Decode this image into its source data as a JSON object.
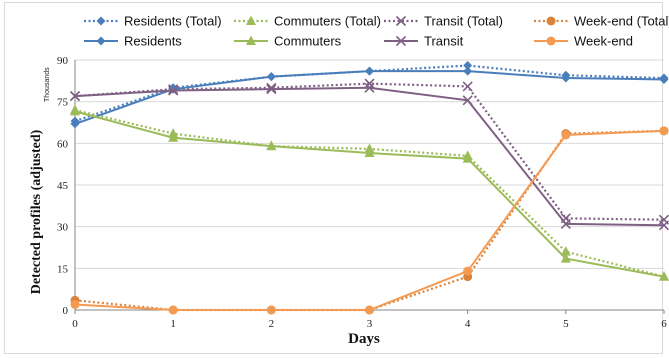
{
  "chart_data": {
    "type": "line",
    "xlabel": "Days",
    "ylabel": "Detected profiles (adjusted)",
    "unit_label": "Thousands",
    "x": [
      0,
      1,
      2,
      3,
      4,
      5,
      6
    ],
    "xlim": [
      0,
      6
    ],
    "ylim": [
      0,
      90
    ],
    "yticks": [
      0,
      15,
      30,
      45,
      60,
      75,
      90
    ],
    "grid": "horizontal",
    "legend_position": "top",
    "series": [
      {
        "name": "Residents (Total)",
        "style": "dotted",
        "marker": "diamond",
        "color": "#4a7ebb",
        "values": [
          68,
          80,
          84,
          86,
          88,
          84.5,
          83.5
        ]
      },
      {
        "name": "Commuters (Total)",
        "style": "dotted",
        "marker": "triangle",
        "color": "#9bbb59",
        "values": [
          72,
          63.5,
          59,
          58,
          55.5,
          21,
          12
        ]
      },
      {
        "name": "Transit (Total)",
        "style": "dotted",
        "marker": "x",
        "color": "#7f6084",
        "values": [
          77,
          79.5,
          80,
          81.5,
          80.5,
          33,
          32.5
        ]
      },
      {
        "name": "Week-end (Total)",
        "style": "dotted",
        "marker": "circle",
        "color": "#d9843a",
        "values": [
          3.5,
          0,
          0,
          0,
          12,
          63.5,
          64.5
        ]
      },
      {
        "name": "Residents",
        "style": "solid",
        "marker": "diamond",
        "color": "#4a7ebb",
        "values": [
          67,
          79.5,
          84,
          86,
          86,
          83.5,
          83
        ]
      },
      {
        "name": "Commuters",
        "style": "solid",
        "marker": "triangle",
        "color": "#9bbb59",
        "values": [
          71.5,
          62,
          59,
          56.5,
          54.5,
          18.5,
          12
        ]
      },
      {
        "name": "Transit",
        "style": "solid",
        "marker": "x",
        "color": "#7f6084",
        "values": [
          77,
          79,
          79.5,
          80,
          75.5,
          31,
          30.5
        ]
      },
      {
        "name": "Week-end",
        "style": "solid",
        "marker": "circle",
        "color": "#f39a53",
        "values": [
          2,
          0,
          0,
          0,
          14,
          63,
          64.5
        ]
      }
    ]
  }
}
